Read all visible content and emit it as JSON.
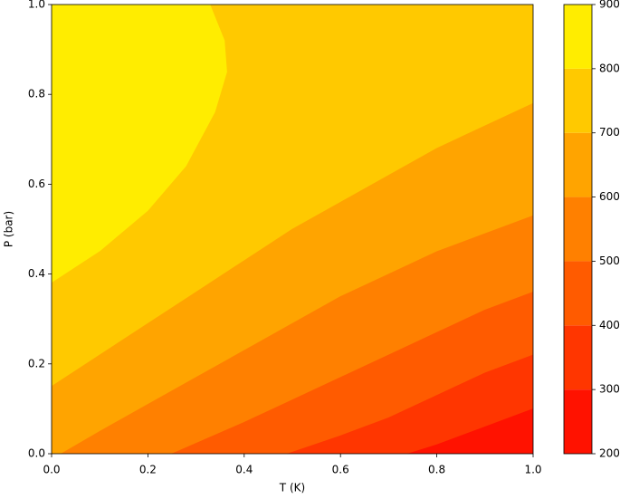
{
  "chart_data": {
    "type": "contourf",
    "xlabel": "T (K)",
    "ylabel": "P (bar)",
    "xlim": [
      0,
      1
    ],
    "ylim": [
      0,
      1
    ],
    "xticks": [
      {
        "value": 0,
        "label": "0.0"
      },
      {
        "value": 0.2,
        "label": "0.2"
      },
      {
        "value": 0.4,
        "label": "0.4"
      },
      {
        "value": 0.6,
        "label": "0.6"
      },
      {
        "value": 0.8,
        "label": "0.8"
      },
      {
        "value": 1,
        "label": "1.0"
      }
    ],
    "yticks": [
      {
        "value": 0,
        "label": "0.0"
      },
      {
        "value": 0.2,
        "label": "0.2"
      },
      {
        "value": 0.4,
        "label": "0.4"
      },
      {
        "value": 0.6,
        "label": "0.6"
      },
      {
        "value": 0.8,
        "label": "0.8"
      },
      {
        "value": 1,
        "label": "1.0"
      }
    ],
    "levels": [
      200,
      300,
      400,
      500,
      600,
      700,
      800,
      900
    ],
    "colors": [
      "#ff1200",
      "#ff3600",
      "#ff5b00",
      "#ff8000",
      "#ffa400",
      "#ffc900",
      "#ffed00"
    ],
    "contours": [
      {
        "level": 800,
        "x": [
          0,
          0.1,
          0.2,
          0.28,
          0.34,
          0.365,
          0.36,
          0.33
        ],
        "y": [
          0.38,
          0.45,
          0.54,
          0.64,
          0.76,
          0.85,
          0.92,
          1
        ]
      },
      {
        "level": 700,
        "x": [
          0,
          0.1,
          0.2,
          0.3,
          0.4,
          0.5,
          0.6,
          0.7,
          0.8,
          0.9,
          1
        ],
        "y": [
          0.15,
          0.22,
          0.29,
          0.36,
          0.43,
          0.5,
          0.56,
          0.62,
          0.68,
          0.73,
          0.78
        ]
      },
      {
        "level": 600,
        "x": [
          0.02,
          0.1,
          0.2,
          0.3,
          0.4,
          0.5,
          0.6,
          0.7,
          0.8,
          0.9,
          1
        ],
        "y": [
          0,
          0.05,
          0.11,
          0.17,
          0.23,
          0.29,
          0.35,
          0.4,
          0.45,
          0.49,
          0.53
        ]
      },
      {
        "level": 500,
        "x": [
          0.25,
          0.4,
          0.5,
          0.6,
          0.7,
          0.8,
          0.9,
          1
        ],
        "y": [
          0,
          0.07,
          0.12,
          0.17,
          0.22,
          0.27,
          0.32,
          0.36
        ]
      },
      {
        "level": 400,
        "x": [
          0.49,
          0.6,
          0.7,
          0.8,
          0.9,
          1
        ],
        "y": [
          0,
          0.04,
          0.08,
          0.13,
          0.18,
          0.22
        ]
      },
      {
        "level": 300,
        "x": [
          0.74,
          0.8,
          0.9,
          1
        ],
        "y": [
          0,
          0.02,
          0.06,
          0.1
        ]
      }
    ]
  }
}
